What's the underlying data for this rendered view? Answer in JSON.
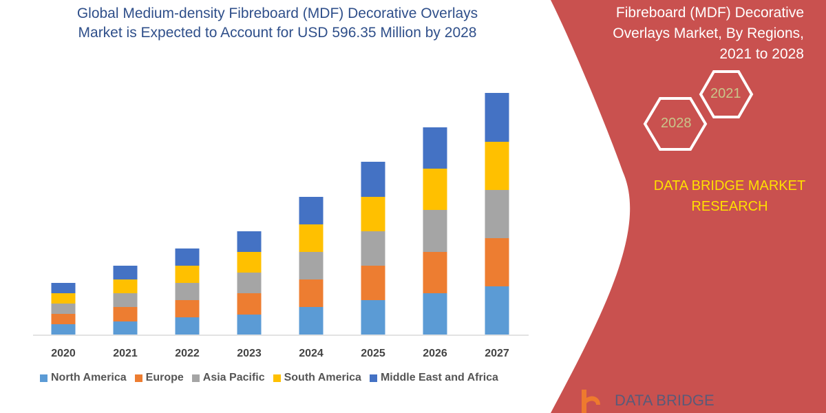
{
  "title": {
    "line1": "Global Medium-density Fibreboard (MDF) Decorative Overlays",
    "line2": "Market is Expected to Account for USD 596.35 Million by 2028"
  },
  "side_panel": {
    "title_line1": "Fibreboard (MDF) Decorative",
    "title_line2": "Overlays Market, By Regions,",
    "title_line3": "2021 to 2028",
    "hex1": "2021",
    "hex2": "2028",
    "brand_line1": "DATA BRIDGE MARKET",
    "brand_line2": "RESEARCH",
    "logo_text": "DATA BRIDGE",
    "panel_color": "#c9514f"
  },
  "chart_data": {
    "type": "bar",
    "stacked": true,
    "categories": [
      "2020",
      "2021",
      "2022",
      "2023",
      "2024",
      "2025",
      "2026",
      "2027"
    ],
    "series": [
      {
        "name": "North America",
        "color": "#5b9bd5",
        "values": [
          15,
          19,
          25,
          29,
          40,
          50,
          60,
          70
        ]
      },
      {
        "name": "Europe",
        "color": "#ed7d31",
        "values": [
          15,
          21,
          25,
          31,
          40,
          50,
          60,
          70
        ]
      },
      {
        "name": "Asia Pacific",
        "color": "#a5a5a5",
        "values": [
          15,
          20,
          25,
          30,
          40,
          50,
          61,
          70
        ]
      },
      {
        "name": "South America",
        "color": "#ffc000",
        "values": [
          15,
          20,
          25,
          30,
          40,
          50,
          60,
          70
        ]
      },
      {
        "name": "Middle East and Africa",
        "color": "#4472c4",
        "values": [
          15,
          20,
          25,
          30,
          40,
          51,
          60,
          71
        ]
      }
    ],
    "xlabel": "",
    "ylabel": "",
    "y_axis_shown": false,
    "grid": false,
    "legend_position": "bottom"
  }
}
